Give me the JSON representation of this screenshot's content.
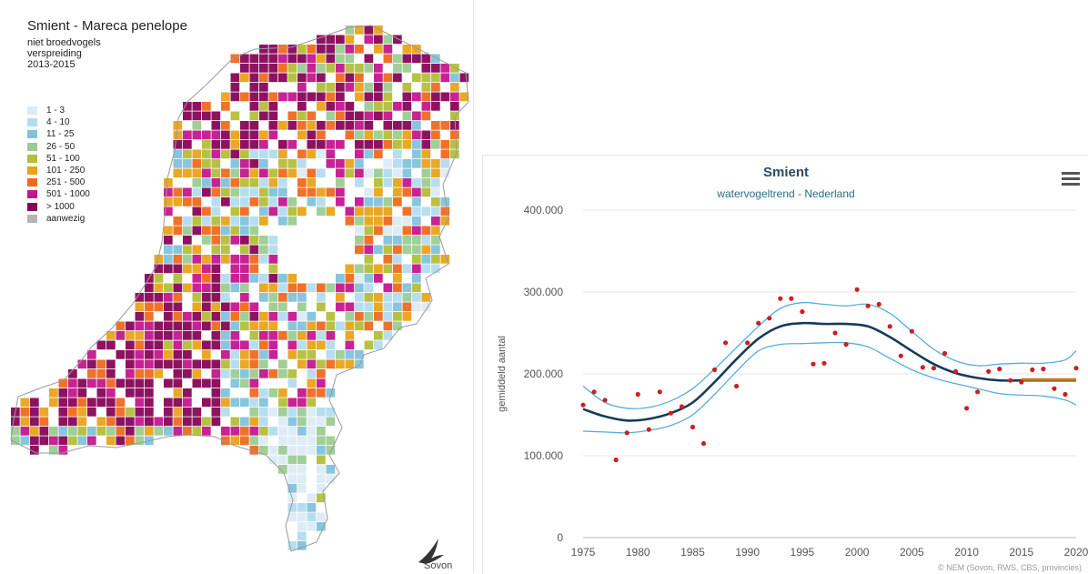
{
  "map": {
    "title": "Smient - Mareca penelope",
    "subtitle1": "niet broedvogels",
    "subtitle2": "verspreiding",
    "subtitle3": "2013-2015",
    "legend": [
      {
        "label": "1 - 3",
        "color": "#dcebf6"
      },
      {
        "label": "4 - 10",
        "color": "#b3dcef"
      },
      {
        "label": "11 - 25",
        "color": "#82c2dc"
      },
      {
        "label": "26 - 50",
        "color": "#9bcc92"
      },
      {
        "label": "51 - 100",
        "color": "#b3bf3a"
      },
      {
        "label": "101 - 250",
        "color": "#e8a31a"
      },
      {
        "label": "251 - 500",
        "color": "#ef6a1f"
      },
      {
        "label": "501 - 1000",
        "color": "#c4178e"
      },
      {
        "label": "> 1000",
        "color": "#870659"
      },
      {
        "label": "aanwezig",
        "color": "#b4b4b4"
      }
    ],
    "logo_text": "Sovon"
  },
  "chart": {
    "title": "Smient",
    "subtitle": "watervogeltrend - Nederland",
    "credits": "© NEM (Sovon, RWS, CBS, provincies)",
    "menu_icon": "hamburger-menu-icon"
  },
  "chart_data": {
    "type": "line",
    "title": "Smient",
    "subtitle": "watervogeltrend - Nederland",
    "ylabel": "gemiddeld aantal",
    "xlabel": "",
    "xlim": [
      1975,
      2020
    ],
    "ylim": [
      0,
      400000
    ],
    "x_ticks": [
      "1975",
      "1980",
      "1985",
      "1990",
      "1995",
      "2000",
      "2005",
      "2010",
      "2015",
      "2020"
    ],
    "y_ticks": [
      "0",
      "100.000",
      "200.000",
      "300.000",
      "400.000"
    ],
    "grid": true,
    "series": [
      {
        "kind": "points",
        "color": "#cc1f1f",
        "points": [
          [
            1975,
            162000
          ],
          [
            1976,
            178000
          ],
          [
            1977,
            168000
          ],
          [
            1978,
            95000
          ],
          [
            1979,
            128000
          ],
          [
            1980,
            175000
          ],
          [
            1981,
            132000
          ],
          [
            1982,
            178000
          ],
          [
            1983,
            152000
          ],
          [
            1984,
            160000
          ],
          [
            1985,
            135000
          ],
          [
            1986,
            115000
          ],
          [
            1987,
            205000
          ],
          [
            1988,
            238000
          ],
          [
            1989,
            185000
          ],
          [
            1990,
            238000
          ],
          [
            1991,
            262000
          ],
          [
            1992,
            268000
          ],
          [
            1993,
            292000
          ],
          [
            1994,
            292000
          ],
          [
            1995,
            276000
          ],
          [
            1996,
            212000
          ],
          [
            1997,
            213000
          ],
          [
            1998,
            250000
          ],
          [
            1999,
            236000
          ],
          [
            2000,
            303000
          ],
          [
            2001,
            283000
          ],
          [
            2002,
            285000
          ],
          [
            2003,
            258000
          ],
          [
            2004,
            222000
          ],
          [
            2005,
            252000
          ],
          [
            2006,
            208000
          ],
          [
            2007,
            207000
          ],
          [
            2008,
            225000
          ],
          [
            2009,
            203000
          ],
          [
            2010,
            158000
          ],
          [
            2011,
            178000
          ],
          [
            2012,
            203000
          ],
          [
            2013,
            206000
          ],
          [
            2014,
            192000
          ],
          [
            2015,
            190000
          ],
          [
            2016,
            205000
          ],
          [
            2017,
            206000
          ],
          [
            2018,
            182000
          ],
          [
            2019,
            175000
          ],
          [
            2020,
            207000
          ]
        ]
      },
      {
        "kind": "trend",
        "color": "#173a5a",
        "points": [
          [
            1975,
            157000
          ],
          [
            1977,
            148000
          ],
          [
            1979,
            143000
          ],
          [
            1981,
            145000
          ],
          [
            1983,
            152000
          ],
          [
            1985,
            165000
          ],
          [
            1987,
            190000
          ],
          [
            1989,
            218000
          ],
          [
            1991,
            243000
          ],
          [
            1993,
            258000
          ],
          [
            1995,
            262000
          ],
          [
            1997,
            261000
          ],
          [
            1999,
            261000
          ],
          [
            2001,
            258000
          ],
          [
            2003,
            245000
          ],
          [
            2005,
            228000
          ],
          [
            2007,
            212000
          ],
          [
            2009,
            201000
          ],
          [
            2011,
            195000
          ],
          [
            2013,
            192000
          ],
          [
            2015,
            192000
          ],
          [
            2017,
            192000
          ],
          [
            2020,
            192000
          ]
        ]
      },
      {
        "kind": "upper",
        "color": "#55aee0",
        "points": [
          [
            1975,
            185000
          ],
          [
            1977,
            165000
          ],
          [
            1979,
            158000
          ],
          [
            1981,
            159000
          ],
          [
            1983,
            167000
          ],
          [
            1985,
            182000
          ],
          [
            1987,
            206000
          ],
          [
            1989,
            232000
          ],
          [
            1991,
            258000
          ],
          [
            1993,
            280000
          ],
          [
            1995,
            287000
          ],
          [
            1997,
            285000
          ],
          [
            1999,
            283000
          ],
          [
            2001,
            285000
          ],
          [
            2003,
            274000
          ],
          [
            2005,
            252000
          ],
          [
            2007,
            230000
          ],
          [
            2009,
            216000
          ],
          [
            2011,
            210000
          ],
          [
            2013,
            212000
          ],
          [
            2015,
            213000
          ],
          [
            2017,
            213000
          ],
          [
            2019,
            217000
          ],
          [
            2020,
            228000
          ]
        ]
      },
      {
        "kind": "lower",
        "color": "#55aee0",
        "points": [
          [
            1975,
            130000
          ],
          [
            1977,
            129000
          ],
          [
            1979,
            128000
          ],
          [
            1981,
            131000
          ],
          [
            1983,
            137000
          ],
          [
            1985,
            150000
          ],
          [
            1987,
            175000
          ],
          [
            1989,
            203000
          ],
          [
            1991,
            228000
          ],
          [
            1993,
            236000
          ],
          [
            1995,
            237000
          ],
          [
            1997,
            238000
          ],
          [
            1999,
            238000
          ],
          [
            2001,
            233000
          ],
          [
            2003,
            219000
          ],
          [
            2005,
            205000
          ],
          [
            2007,
            195000
          ],
          [
            2009,
            188000
          ],
          [
            2011,
            182000
          ],
          [
            2013,
            176000
          ],
          [
            2015,
            174000
          ],
          [
            2017,
            173000
          ],
          [
            2019,
            168000
          ],
          [
            2020,
            162000
          ]
        ]
      },
      {
        "kind": "highlight",
        "color": "#c97a16",
        "points": [
          [
            2015,
            193000
          ],
          [
            2020,
            193000
          ]
        ]
      }
    ]
  }
}
